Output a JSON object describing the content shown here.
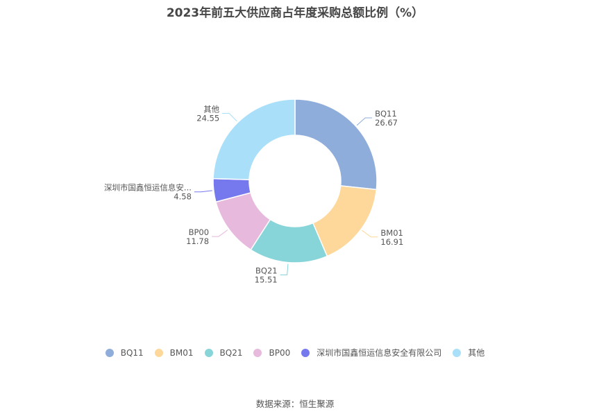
{
  "chart_data": {
    "type": "pie",
    "title": "2023年前五大供应商占年度采购总额比例（%）",
    "categories": [
      "BQ11",
      "BM01",
      "BQ21",
      "BP00",
      "深圳市国鑫恒运信息安全有限公司",
      "其他"
    ],
    "values": [
      26.67,
      16.91,
      15.51,
      11.78,
      4.58,
      24.55
    ],
    "value_labels": [
      "26.67",
      "16.91",
      "15.51",
      "11.78",
      "4.58",
      "24.55"
    ],
    "slice_labels": [
      "BQ11",
      "BM01",
      "BQ21",
      "BP00",
      "深圳市国鑫恒运信息安...",
      "其他"
    ],
    "colors": [
      "#8faddb",
      "#fdd89a",
      "#87d4d9",
      "#e7b9dd",
      "#7678ee",
      "#a9dff9"
    ],
    "legend_position": "bottom",
    "donut": true
  },
  "source": "数据来源：恒生聚源"
}
